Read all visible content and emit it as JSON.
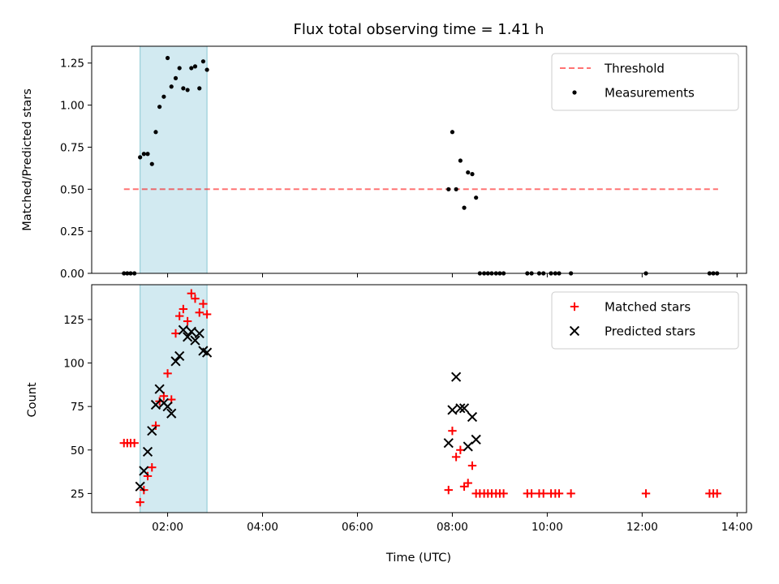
{
  "chart_data": [
    {
      "type": "scatter",
      "title": "Flux total observing time = 1.41 h",
      "xlabel": "",
      "ylabel": "Matched/Predicted stars",
      "xlim": [
        0.4,
        14.2
      ],
      "ylim": [
        0,
        1.35
      ],
      "yticks": [
        0,
        0.25,
        0.5,
        0.75,
        1.0,
        1.25
      ],
      "ytick_labels": [
        "0.00",
        "0.25",
        "0.50",
        "0.75",
        "1.00",
        "1.25"
      ],
      "shaded_span": {
        "x0": 1.42,
        "x1": 2.83,
        "color": "#add8e6"
      },
      "legend_position": "top-right",
      "series": [
        {
          "name": "Threshold",
          "kind": "hline",
          "style": "dashed",
          "color": "#ff0000",
          "y": 0.5,
          "x_range": [
            1.08,
            13.6
          ]
        },
        {
          "name": "Measurements",
          "kind": "scatter",
          "marker": "dot",
          "color": "#000000",
          "points": [
            [
              1.08,
              0
            ],
            [
              1.15,
              0
            ],
            [
              1.22,
              0
            ],
            [
              1.3,
              0
            ],
            [
              1.42,
              0.69
            ],
            [
              1.5,
              0.71
            ],
            [
              1.58,
              0.71
            ],
            [
              1.67,
              0.65
            ],
            [
              1.75,
              0.84
            ],
            [
              1.83,
              0.99
            ],
            [
              1.92,
              1.05
            ],
            [
              2.0,
              1.28
            ],
            [
              2.08,
              1.11
            ],
            [
              2.17,
              1.16
            ],
            [
              2.25,
              1.22
            ],
            [
              2.33,
              1.1
            ],
            [
              2.42,
              1.09
            ],
            [
              2.5,
              1.22
            ],
            [
              2.58,
              1.23
            ],
            [
              2.67,
              1.1
            ],
            [
              2.75,
              1.26
            ],
            [
              2.83,
              1.21
            ],
            [
              7.92,
              0.5
            ],
            [
              8.0,
              0.84
            ],
            [
              8.08,
              0.5
            ],
            [
              8.17,
              0.67
            ],
            [
              8.25,
              0.39
            ],
            [
              8.33,
              0.6
            ],
            [
              8.42,
              0.59
            ],
            [
              8.5,
              0.45
            ],
            [
              8.58,
              0
            ],
            [
              8.67,
              0
            ],
            [
              8.75,
              0
            ],
            [
              8.83,
              0
            ],
            [
              8.92,
              0
            ],
            [
              9.0,
              0
            ],
            [
              9.08,
              0
            ],
            [
              9.58,
              0
            ],
            [
              9.67,
              0
            ],
            [
              9.83,
              0
            ],
            [
              9.92,
              0
            ],
            [
              10.08,
              0
            ],
            [
              10.17,
              0
            ],
            [
              10.25,
              0
            ],
            [
              10.5,
              0
            ],
            [
              12.08,
              0
            ],
            [
              13.42,
              0
            ],
            [
              13.5,
              0
            ],
            [
              13.58,
              0
            ]
          ]
        }
      ]
    },
    {
      "type": "scatter",
      "title": "",
      "xlabel": "Time (UTC)",
      "ylabel": "Count",
      "xlim": [
        0.4,
        14.2
      ],
      "ylim": [
        14,
        145
      ],
      "yticks": [
        25,
        50,
        75,
        100,
        125
      ],
      "ytick_labels": [
        "25",
        "50",
        "75",
        "100",
        "125"
      ],
      "xticks": [
        2,
        4,
        6,
        8,
        10,
        12,
        14
      ],
      "xtick_labels": [
        "02:00",
        "04:00",
        "06:00",
        "08:00",
        "10:00",
        "12:00",
        "14:00"
      ],
      "shaded_span": {
        "x0": 1.42,
        "x1": 2.83,
        "color": "#add8e6"
      },
      "legend_position": "top-right",
      "series": [
        {
          "name": "Matched stars",
          "kind": "scatter",
          "marker": "plus",
          "color": "#ff0000",
          "points": [
            [
              1.08,
              54
            ],
            [
              1.15,
              54
            ],
            [
              1.22,
              54
            ],
            [
              1.3,
              54
            ],
            [
              1.42,
              20
            ],
            [
              1.5,
              27
            ],
            [
              1.58,
              35
            ],
            [
              1.67,
              40
            ],
            [
              1.75,
              64
            ],
            [
              1.83,
              78
            ],
            [
              1.92,
              81
            ],
            [
              2.0,
              94
            ],
            [
              2.08,
              79
            ],
            [
              2.17,
              117
            ],
            [
              2.25,
              127
            ],
            [
              2.33,
              131
            ],
            [
              2.42,
              124
            ],
            [
              2.5,
              140
            ],
            [
              2.58,
              137
            ],
            [
              2.67,
              129
            ],
            [
              2.75,
              134
            ],
            [
              2.83,
              128
            ],
            [
              7.92,
              27
            ],
            [
              8.0,
              61
            ],
            [
              8.08,
              46
            ],
            [
              8.17,
              50
            ],
            [
              8.25,
              29
            ],
            [
              8.33,
              31
            ],
            [
              8.42,
              41
            ],
            [
              8.5,
              25
            ],
            [
              8.58,
              25
            ],
            [
              8.67,
              25
            ],
            [
              8.75,
              25
            ],
            [
              8.83,
              25
            ],
            [
              8.92,
              25
            ],
            [
              9.0,
              25
            ],
            [
              9.08,
              25
            ],
            [
              9.58,
              25
            ],
            [
              9.67,
              25
            ],
            [
              9.83,
              25
            ],
            [
              9.92,
              25
            ],
            [
              10.08,
              25
            ],
            [
              10.17,
              25
            ],
            [
              10.25,
              25
            ],
            [
              10.5,
              25
            ],
            [
              12.08,
              25
            ],
            [
              13.42,
              25
            ],
            [
              13.5,
              25
            ],
            [
              13.58,
              25
            ]
          ]
        },
        {
          "name": "Predicted stars",
          "kind": "scatter",
          "marker": "x",
          "color": "#000000",
          "points": [
            [
              1.42,
              29
            ],
            [
              1.5,
              38
            ],
            [
              1.58,
              49
            ],
            [
              1.67,
              61
            ],
            [
              1.75,
              76
            ],
            [
              1.83,
              85
            ],
            [
              1.92,
              77
            ],
            [
              2.0,
              75
            ],
            [
              2.08,
              71
            ],
            [
              2.17,
              101
            ],
            [
              2.25,
              104
            ],
            [
              2.33,
              119
            ],
            [
              2.42,
              115
            ],
            [
              2.5,
              118
            ],
            [
              2.58,
              113
            ],
            [
              2.67,
              117
            ],
            [
              2.75,
              107
            ],
            [
              2.83,
              106
            ],
            [
              7.92,
              54
            ],
            [
              8.0,
              73
            ],
            [
              8.08,
              92
            ],
            [
              8.17,
              74
            ],
            [
              8.25,
              74
            ],
            [
              8.33,
              52
            ],
            [
              8.42,
              69
            ],
            [
              8.5,
              56
            ]
          ]
        }
      ]
    }
  ]
}
